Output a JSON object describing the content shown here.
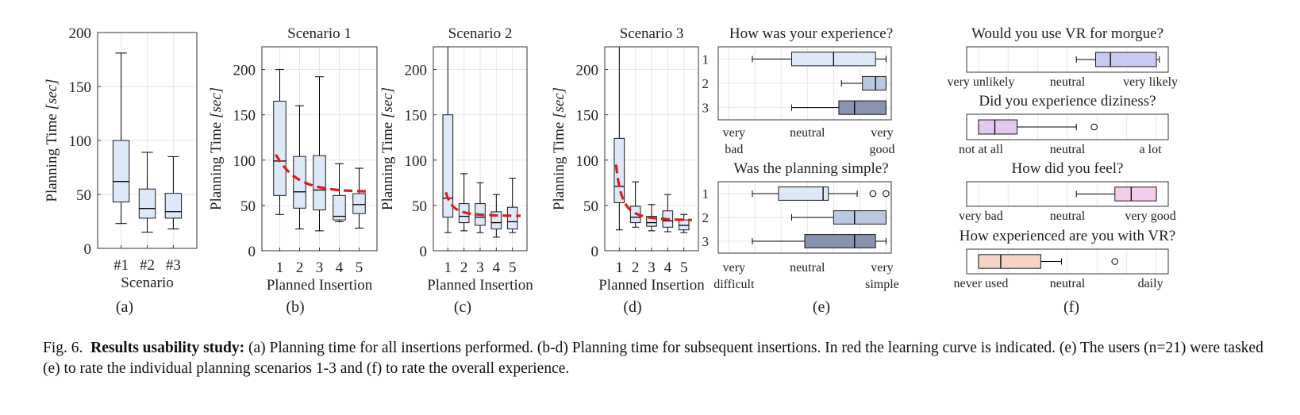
{
  "colors": {
    "box_light": "#dde9f8",
    "box_mid": "#b9c8e0",
    "box_dark": "#8793b0",
    "learning_curve": "#dd1c1c",
    "purple_box": "#c7c9f2",
    "violet_box": "#e3c8f0",
    "pink_box": "#f5cdea",
    "peach_box": "#f7d3c6",
    "grid": "#e6e6e6",
    "axis": "#333333"
  },
  "chart_data": [
    {
      "id": "a",
      "type": "boxplot",
      "panel_label": "(a)",
      "title": "",
      "xlabel": "Scenario",
      "ylabel_prefix": "Planning Time ",
      "ylabel_unit": "[sec]",
      "ylim": [
        0,
        200
      ],
      "yticks": [
        0,
        50,
        100,
        150,
        200
      ],
      "grid": true,
      "categories": [
        "#1",
        "#2",
        "#3"
      ],
      "boxes": [
        {
          "min": 23,
          "q1": 43,
          "median": 62,
          "q3": 100,
          "max": 181
        },
        {
          "min": 15,
          "q1": 28,
          "median": 37,
          "q3": 55,
          "max": 89
        },
        {
          "min": 18,
          "q1": 28,
          "median": 34,
          "q3": 51,
          "max": 85
        }
      ]
    },
    {
      "id": "b",
      "type": "boxplot",
      "panel_label": "(b)",
      "title": "Scenario 1",
      "xlabel": "Planned Insertion",
      "ylabel_prefix": "Planning Time ",
      "ylabel_unit": "[sec]",
      "ylim": [
        0,
        225
      ],
      "yticks": [
        0,
        50,
        100,
        150,
        200
      ],
      "grid": true,
      "categories": [
        "1",
        "2",
        "3",
        "4",
        "5"
      ],
      "boxes": [
        {
          "min": 40,
          "q1": 61,
          "median": 99,
          "q3": 165,
          "max": 200
        },
        {
          "min": 24,
          "q1": 47,
          "median": 65,
          "q3": 104,
          "max": 160
        },
        {
          "min": 22,
          "q1": 45,
          "median": 67,
          "q3": 105,
          "max": 192
        },
        {
          "min": 32,
          "q1": 34,
          "median": 38,
          "q3": 61,
          "max": 96
        },
        {
          "min": 25,
          "q1": 41,
          "median": 51,
          "q3": 63,
          "max": 91
        }
      ],
      "learning_curve": {
        "x_start": 0.8,
        "x_end": 5.5,
        "x_end_value": 65
      }
    },
    {
      "id": "c",
      "type": "boxplot",
      "panel_label": "(c)",
      "title": "Scenario 2",
      "xlabel": "Planned Insertion",
      "ylabel_prefix": "Planning Time ",
      "ylabel_unit": "[sec]",
      "ylim": [
        0,
        225
      ],
      "yticks": [
        0,
        50,
        100,
        150,
        200
      ],
      "grid": true,
      "categories": [
        "1",
        "2",
        "3",
        "4",
        "5"
      ],
      "boxes": [
        {
          "min": 20,
          "q1": 37,
          "median": 58,
          "q3": 150,
          "max": 225
        },
        {
          "min": 22,
          "q1": 31,
          "median": 38,
          "q3": 52,
          "max": 85
        },
        {
          "min": 20,
          "q1": 28,
          "median": 37,
          "q3": 52,
          "max": 75
        },
        {
          "min": 15,
          "q1": 24,
          "median": 31,
          "q3": 43,
          "max": 62
        },
        {
          "min": 20,
          "q1": 24,
          "median": 32,
          "q3": 48,
          "max": 80
        }
      ],
      "learning_curve": {
        "x_start": 0.88,
        "x_end": 5.5,
        "x_end_value": 38
      }
    },
    {
      "id": "d",
      "type": "boxplot",
      "panel_label": "(d)",
      "title": "Scenario 3",
      "xlabel": "Planned Insertion",
      "ylabel_prefix": "Planning Time ",
      "ylabel_unit": "[sec]",
      "ylim": [
        0,
        225
      ],
      "yticks": [
        0,
        50,
        100,
        150,
        200
      ],
      "grid": true,
      "categories": [
        "1",
        "2",
        "3",
        "4",
        "5"
      ],
      "boxes": [
        {
          "min": 23,
          "q1": 53,
          "median": 71,
          "q3": 124,
          "max": 225
        },
        {
          "min": 26,
          "q1": 31,
          "median": 37,
          "q3": 49,
          "max": 76
        },
        {
          "min": 22,
          "q1": 27,
          "median": 31,
          "q3": 38,
          "max": 51
        },
        {
          "min": 21,
          "q1": 26,
          "median": 33,
          "q3": 44,
          "max": 62
        },
        {
          "min": 20,
          "q1": 23,
          "median": 28,
          "q3": 34,
          "max": 40
        }
      ],
      "learning_curve": {
        "x_start": 0.8,
        "x_end": 5.5,
        "x_end_value": 33
      }
    }
  ],
  "likert_data": {
    "e": {
      "panel_label": "(e)",
      "blocks": [
        {
          "title": "How was your experience?",
          "scale_labels": [
            [
              "very",
              "bad"
            ],
            [
              "neutral"
            ],
            [
              "very",
              "good"
            ]
          ],
          "xlim": [
            0.6,
            7.2
          ],
          "rows": [
            {
              "label": "1",
              "whisker_low": 1.9,
              "q1": 3.4,
              "median": 5.0,
              "q3": 6.6,
              "whisker_high": 7.0,
              "shade": "box_light"
            },
            {
              "label": "2",
              "whisker_low": 5.3,
              "q1": 6.1,
              "median": 6.6,
              "q3": 7.0,
              "whisker_high": 7.0,
              "shade": "box_mid"
            },
            {
              "label": "3",
              "whisker_low": 3.4,
              "q1": 5.2,
              "median": 5.8,
              "q3": 7.0,
              "whisker_high": 7.0,
              "shade": "box_dark"
            }
          ]
        },
        {
          "title": "Was the planning simple?",
          "scale_labels": [
            [
              "very",
              "difficult"
            ],
            [
              "neutral"
            ],
            [
              "very",
              "simple"
            ]
          ],
          "xlim": [
            0.6,
            7.2
          ],
          "rows": [
            {
              "label": "1",
              "whisker_low": 1.9,
              "q1": 2.9,
              "median": 4.6,
              "q3": 4.8,
              "whisker_high": 5.9,
              "outliers": [
                6.5,
                7.0
              ],
              "shade": "box_light"
            },
            {
              "label": "2",
              "whisker_low": 3.4,
              "q1": 5.0,
              "median": 5.8,
              "q3": 7.0,
              "whisker_high": 7.0,
              "shade": "box_mid"
            },
            {
              "label": "3",
              "whisker_low": 1.9,
              "q1": 3.9,
              "median": 5.8,
              "q3": 6.6,
              "whisker_high": 7.0,
              "shade": "box_dark"
            }
          ]
        }
      ]
    },
    "f": {
      "panel_label": "(f)",
      "blocks": [
        {
          "title": "Would you use VR for morgue?",
          "scale_labels": [
            "very unlikely",
            "neutral",
            "very likely"
          ],
          "xlim": [
            0.6,
            7.4
          ],
          "row": {
            "whisker_low": 4.3,
            "q1": 4.95,
            "median": 5.45,
            "q3": 7.0,
            "whisker_high": 7.1
          },
          "shade": "purple_box"
        },
        {
          "title": "Did you experience diziness?",
          "scale_labels": [
            "not at all",
            "neutral",
            "a lot"
          ],
          "xlim": [
            0.6,
            7.4
          ],
          "row": {
            "whisker_low": 1.0,
            "q1": 1.0,
            "median": 1.55,
            "q3": 2.3,
            "whisker_high": 4.3,
            "outliers": [
              4.9
            ]
          },
          "shade": "violet_box"
        },
        {
          "title": "How did you feel?",
          "scale_labels": [
            "very bad",
            "neutral",
            "very good"
          ],
          "xlim": [
            0.6,
            7.4
          ],
          "row": {
            "whisker_low": 4.3,
            "q1": 5.6,
            "median": 6.15,
            "q3": 7.0,
            "whisker_high": 7.0
          },
          "shade": "pink_box"
        },
        {
          "title": "How experienced are you with VR?",
          "scale_labels": [
            "never used",
            "neutral",
            "daily"
          ],
          "xlim": [
            0.6,
            7.4
          ],
          "row": {
            "whisker_low": 1.0,
            "q1": 1.0,
            "median": 1.75,
            "q3": 3.1,
            "whisker_high": 3.8,
            "outliers": [
              5.6
            ]
          },
          "shade": "peach_box"
        }
      ]
    }
  },
  "caption": {
    "fig_label": "Fig. 6.",
    "bold": "Results usability study:",
    "text": " (a) Planning time for all insertions performed. (b-d) Planning time for subsequent insertions. In red the learning curve is indicated. (e) The users (n=21) were tasked (e) to rate the individual planning scenarios 1-3 and (f) to rate the overall experience."
  }
}
